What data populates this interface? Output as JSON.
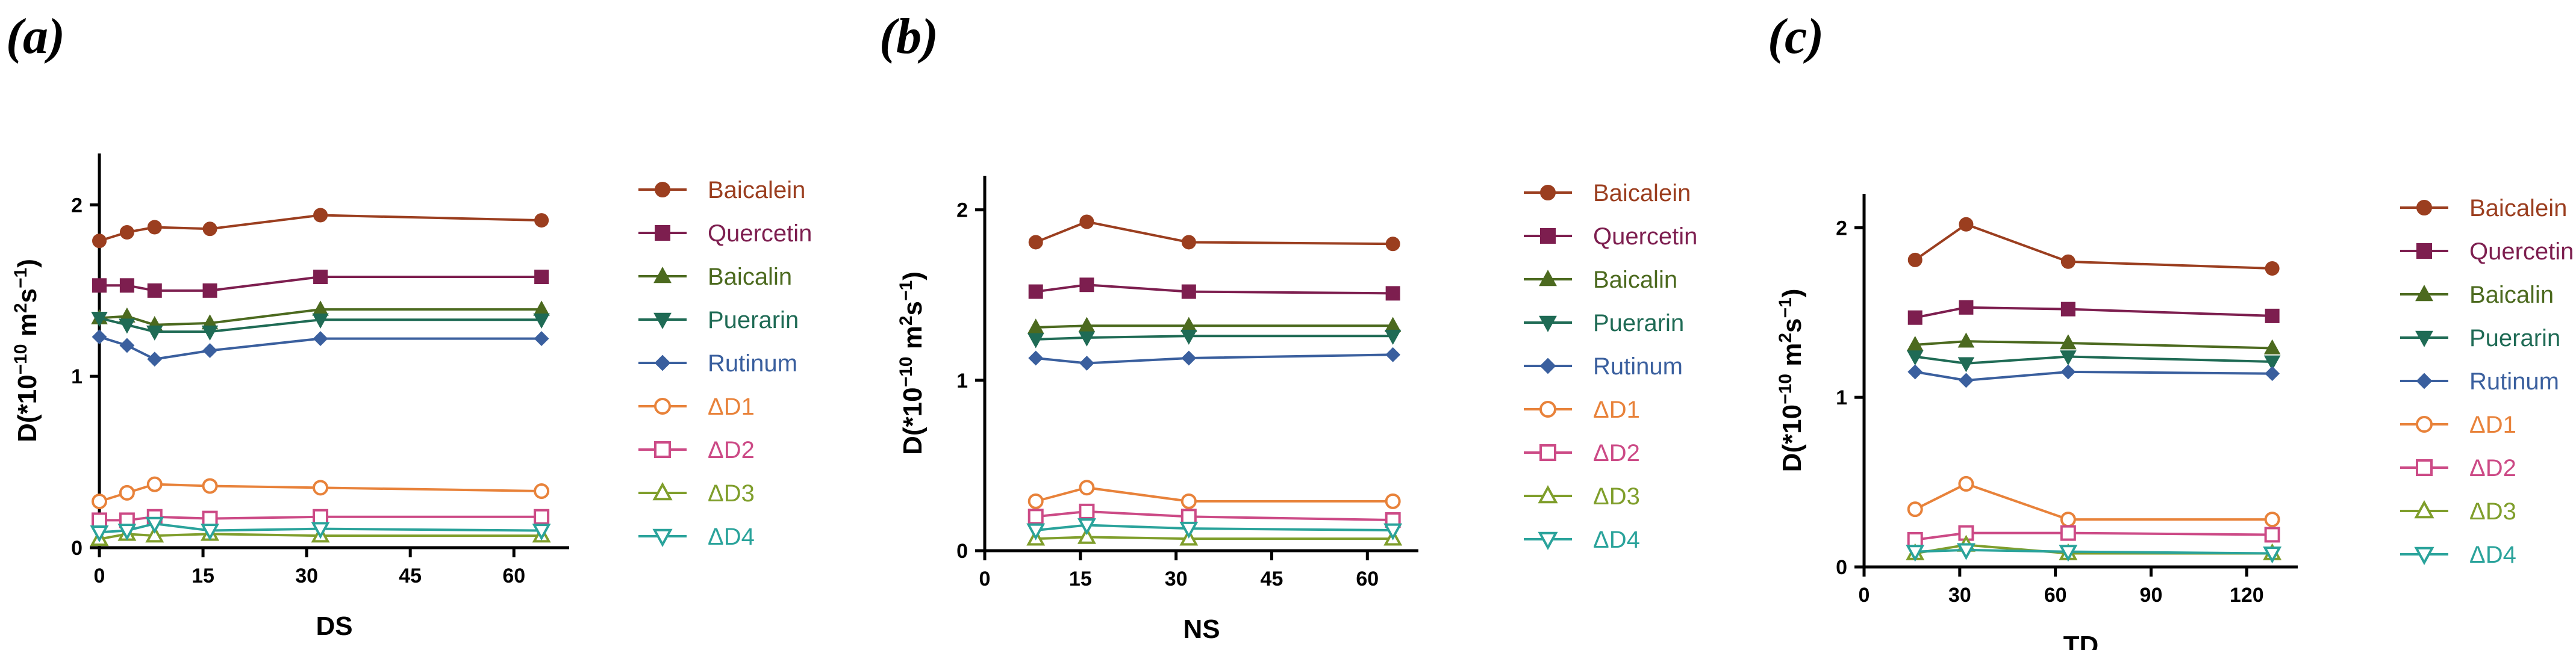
{
  "chart_data": [
    {
      "panel": "(a)",
      "type": "line",
      "xlabel": "DS",
      "ylabel": "D(*10^-10 m^2s^-1)",
      "xlim": [
        0,
        68
      ],
      "ylim": [
        0,
        2.3
      ],
      "xticks": [
        0,
        15,
        30,
        45,
        60
      ],
      "yticks": [
        0,
        1,
        2
      ],
      "series": [
        {
          "name": "Baicalein",
          "x": [
            0,
            4,
            8,
            16,
            32,
            64
          ],
          "values": [
            1.79,
            1.84,
            1.87,
            1.86,
            1.94,
            1.91
          ]
        },
        {
          "name": "Quercetin",
          "x": [
            0,
            4,
            8,
            16,
            32,
            64
          ],
          "values": [
            1.53,
            1.53,
            1.5,
            1.5,
            1.58,
            1.58
          ]
        },
        {
          "name": "Baicalin",
          "x": [
            0,
            4,
            8,
            16,
            32,
            64
          ],
          "values": [
            1.34,
            1.35,
            1.3,
            1.31,
            1.39,
            1.39
          ]
        },
        {
          "name": "Puerarin",
          "x": [
            0,
            4,
            8,
            16,
            32,
            64
          ],
          "values": [
            1.34,
            1.3,
            1.26,
            1.26,
            1.33,
            1.33
          ]
        },
        {
          "name": "Rutinum",
          "x": [
            0,
            4,
            8,
            16,
            32,
            64
          ],
          "values": [
            1.23,
            1.18,
            1.1,
            1.15,
            1.22,
            1.22
          ]
        },
        {
          "name": "ΔD1",
          "x": [
            0,
            4,
            8,
            16,
            32,
            64
          ],
          "values": [
            0.27,
            0.32,
            0.37,
            0.36,
            0.35,
            0.33
          ]
        },
        {
          "name": "ΔD2",
          "x": [
            0,
            4,
            8,
            16,
            32,
            64
          ],
          "values": [
            0.16,
            0.16,
            0.18,
            0.17,
            0.18,
            0.18
          ]
        },
        {
          "name": "ΔD3",
          "x": [
            0,
            4,
            8,
            16,
            32,
            64
          ],
          "values": [
            0.05,
            0.08,
            0.07,
            0.08,
            0.07,
            0.07
          ]
        },
        {
          "name": "ΔD4",
          "x": [
            0,
            4,
            8,
            16,
            32,
            64
          ],
          "values": [
            0.09,
            0.1,
            0.14,
            0.1,
            0.11,
            0.1
          ]
        }
      ]
    },
    {
      "panel": "(b)",
      "type": "line",
      "xlabel": "NS",
      "ylabel": "D(*10^-10 m^2s^-1)",
      "xlim": [
        0,
        68
      ],
      "ylim": [
        0,
        2.2
      ],
      "xticks": [
        0,
        15,
        30,
        45,
        60
      ],
      "yticks": [
        0,
        1,
        2
      ],
      "series": [
        {
          "name": "Baicalein",
          "x": [
            8,
            16,
            32,
            64
          ],
          "values": [
            1.81,
            1.93,
            1.81,
            1.8
          ]
        },
        {
          "name": "Quercetin",
          "x": [
            8,
            16,
            32,
            64
          ],
          "values": [
            1.52,
            1.56,
            1.52,
            1.51
          ]
        },
        {
          "name": "Baicalin",
          "x": [
            8,
            16,
            32,
            64
          ],
          "values": [
            1.31,
            1.32,
            1.32,
            1.32
          ]
        },
        {
          "name": "Puerarin",
          "x": [
            8,
            16,
            32,
            64
          ],
          "values": [
            1.24,
            1.25,
            1.26,
            1.26
          ]
        },
        {
          "name": "Rutinum",
          "x": [
            8,
            16,
            32,
            64
          ],
          "values": [
            1.13,
            1.1,
            1.13,
            1.15
          ]
        },
        {
          "name": "ΔD1",
          "x": [
            8,
            16,
            32,
            64
          ],
          "values": [
            0.29,
            0.37,
            0.29,
            0.29
          ]
        },
        {
          "name": "ΔD2",
          "x": [
            8,
            16,
            32,
            64
          ],
          "values": [
            0.2,
            0.23,
            0.2,
            0.18
          ]
        },
        {
          "name": "ΔD3",
          "x": [
            8,
            16,
            32,
            64
          ],
          "values": [
            0.07,
            0.08,
            0.07,
            0.07
          ]
        },
        {
          "name": "ΔD4",
          "x": [
            8,
            16,
            32,
            64
          ],
          "values": [
            0.12,
            0.15,
            0.13,
            0.12
          ]
        }
      ]
    },
    {
      "panel": "(c)",
      "type": "line",
      "xlabel": "TD",
      "ylabel": "D(*10^-10 m^2s^-1)",
      "xlim": [
        0,
        136
      ],
      "ylim": [
        0,
        2.2
      ],
      "xticks": [
        0,
        30,
        60,
        90,
        120
      ],
      "yticks": [
        0,
        1,
        2
      ],
      "series": [
        {
          "name": "Baicalein",
          "x": [
            16,
            32,
            64,
            128
          ],
          "values": [
            1.81,
            2.02,
            1.8,
            1.76
          ]
        },
        {
          "name": "Quercetin",
          "x": [
            16,
            32,
            64,
            128
          ],
          "values": [
            1.47,
            1.53,
            1.52,
            1.48
          ]
        },
        {
          "name": "Baicalin",
          "x": [
            16,
            32,
            64,
            128
          ],
          "values": [
            1.31,
            1.33,
            1.32,
            1.29
          ]
        },
        {
          "name": "Puerarin",
          "x": [
            16,
            32,
            64,
            128
          ],
          "values": [
            1.24,
            1.2,
            1.24,
            1.21
          ]
        },
        {
          "name": "Rutinum",
          "x": [
            16,
            32,
            64,
            128
          ],
          "values": [
            1.15,
            1.1,
            1.15,
            1.14
          ]
        },
        {
          "name": "ΔD1",
          "x": [
            16,
            32,
            64,
            128
          ],
          "values": [
            0.34,
            0.49,
            0.28,
            0.28
          ]
        },
        {
          "name": "ΔD2",
          "x": [
            16,
            32,
            64,
            128
          ],
          "values": [
            0.16,
            0.2,
            0.2,
            0.19
          ]
        },
        {
          "name": "ΔD3",
          "x": [
            16,
            32,
            64,
            128
          ],
          "values": [
            0.08,
            0.13,
            0.08,
            0.08
          ]
        },
        {
          "name": "ΔD4",
          "x": [
            16,
            32,
            64,
            128
          ],
          "values": [
            0.09,
            0.1,
            0.09,
            0.08
          ]
        }
      ]
    }
  ],
  "series_styles": [
    {
      "name": "Baicalein",
      "color": "#9b3e1f",
      "marker": "circle"
    },
    {
      "name": "Quercetin",
      "color": "#7d1e4f",
      "marker": "square"
    },
    {
      "name": "Baicalin",
      "color": "#4c6a1f",
      "marker": "triangle-up"
    },
    {
      "name": "Puerarin",
      "color": "#1f6b55",
      "marker": "triangle-down"
    },
    {
      "name": "Rutinum",
      "color": "#3a5f9e",
      "marker": "diamond"
    },
    {
      "name": "ΔD1",
      "color": "#e8823a",
      "marker": "circle-open"
    },
    {
      "name": "ΔD2",
      "color": "#cc4a86",
      "marker": "square-open"
    },
    {
      "name": "ΔD3",
      "color": "#7f9e2b",
      "marker": "triangle-up-open"
    },
    {
      "name": "ΔD4",
      "color": "#2aa39b",
      "marker": "triangle-down-open"
    }
  ]
}
